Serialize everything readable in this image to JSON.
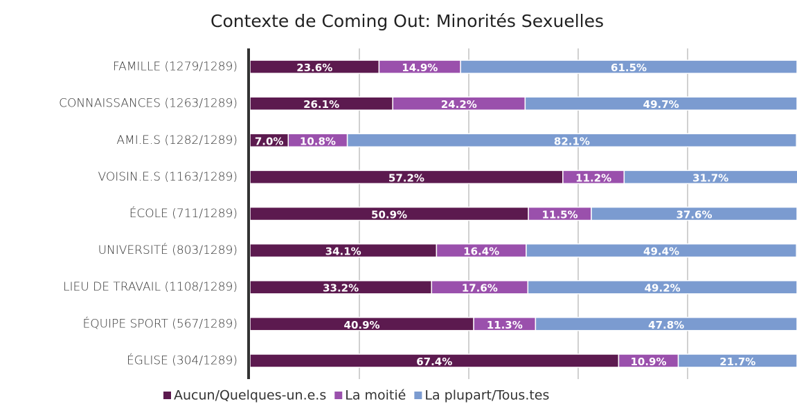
{
  "chart_data": {
    "type": "stacked_barh",
    "title": "Contexte de Coming Out: Minorités Sexuelles",
    "categories": [
      "FAMILLE (1279/1289)",
      "CONNAISSANCES  (1263/1289)",
      "AMI.E.S (1282/1289)",
      "VOISIN.E.S (1163/1289)",
      "ÉCOLE (711/1289)",
      "UNIVERSITÉ (803/1289)",
      "LIEU DE TRAVAIL (1108/1289)",
      "ÉQUIPE SPORT (567/1289)",
      "ÉGLISE (304/1289)"
    ],
    "series": [
      {
        "name": "Aucun/Quelques-un.e.s",
        "color": "#5c1a4f",
        "values": [
          23.6,
          26.1,
          7.0,
          57.2,
          50.9,
          34.1,
          33.2,
          40.9,
          67.4
        ],
        "value_labels": [
          "23.6%",
          "26.1%",
          "7.0%",
          "57.2%",
          "50.9%",
          "34.1%",
          "33.2%",
          "40.9%",
          "67.4%"
        ]
      },
      {
        "name": "La moitié",
        "color": "#9a50ac",
        "values": [
          14.9,
          24.2,
          10.8,
          11.2,
          11.5,
          16.4,
          17.6,
          11.3,
          10.9
        ],
        "value_labels": [
          "14.9%",
          "24.2%",
          "10.8%",
          "11.2%",
          "11.5%",
          "16.4%",
          "17.6%",
          "11.3%",
          "10.9%"
        ]
      },
      {
        "name": "La plupart/Tous.tes",
        "color": "#7b9bd0",
        "values": [
          61.5,
          49.7,
          82.1,
          31.7,
          37.6,
          49.4,
          49.2,
          47.8,
          21.7
        ],
        "value_labels": [
          "61.5%",
          "49.7%",
          "82.1%",
          "31.7%",
          "37.6%",
          "49.4%",
          "49.2%",
          "47.8%",
          "21.7%"
        ]
      }
    ],
    "xlim": [
      0,
      100
    ],
    "xticks": [
      20,
      40,
      60,
      80
    ],
    "grid": true
  }
}
